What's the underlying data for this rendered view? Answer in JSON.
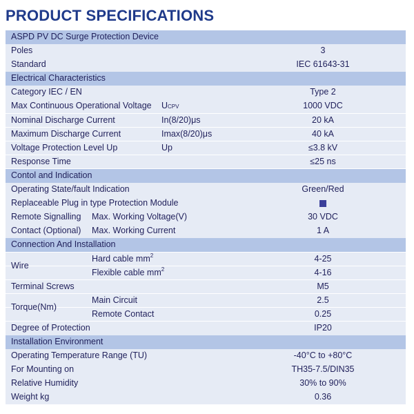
{
  "title": "PRODUCT SPECIFICATIONS",
  "product_name": "ASPD PV DC Surge Protection Device",
  "basic": [
    {
      "label": "Poles",
      "value": "3"
    },
    {
      "label": "Standard",
      "value": "IEC 61643-31"
    }
  ],
  "electrical": {
    "heading": "Electrical Characteristics",
    "rows": [
      {
        "label": "Category IEC / EN",
        "sym": "",
        "value": "Type 2"
      },
      {
        "label": "Max Continuous Operational Voltage",
        "sym": "U",
        "sym_sub": "CPV",
        "value": "1000 VDC"
      },
      {
        "label": "Nominal Discharge Current",
        "sym": "In(8/20)μs",
        "value": "20 kA"
      },
      {
        "label": "Maximum Discharge Current",
        "sym": "Imax(8/20)μs",
        "value": "40 kA"
      },
      {
        "label": "Voltage Protection Level Up",
        "sym": "Up",
        "value": "≤3.8 kV"
      },
      {
        "label": "Response Time",
        "sym": "",
        "value": "≤25 ns"
      }
    ]
  },
  "control": {
    "heading": "Contol and Indication",
    "rows": [
      {
        "label": "Operating State/fault  Indication",
        "value": "Green/Red"
      },
      {
        "label": "Replaceable Plug in type  Protection Module",
        "value": "■"
      }
    ],
    "remote_label_1": "Remote Signalling",
    "remote_label_2": "Contact (Optional)",
    "remote_rows": [
      {
        "sub": "Max. Working Voltage(V)",
        "value": "30 VDC"
      },
      {
        "sub": "Max. Working Current",
        "value": "1 A"
      }
    ]
  },
  "connection": {
    "heading": "Connection And Installation",
    "wire_label": "Wire",
    "wire_rows": [
      {
        "sub": "Hard cable  mm",
        "sup": "2",
        "value": "4-25"
      },
      {
        "sub": "Flexible cable  mm",
        "sup": "2",
        "value": "4-16"
      }
    ],
    "terminal": {
      "label": "Terminal Screws",
      "value": "M5"
    },
    "torque_label": "Torque(Nm)",
    "torque_rows": [
      {
        "sub": "Main Circuit",
        "value": "2.5"
      },
      {
        "sub": "Remote Contact",
        "value": "0.25"
      }
    ],
    "protection": {
      "label": "Degree of Protection",
      "value": "IP20"
    }
  },
  "environment": {
    "heading": "Installation Environment",
    "rows": [
      {
        "label": "Operating Temperature Range (TU)",
        "value": "-40°C to +80°C"
      },
      {
        "label": "For Mounting on",
        "value": "TH35-7.5/DIN35"
      },
      {
        "label": "Relative Humidity",
        "value": "30% to 90%"
      },
      {
        "label": "Weight  kg",
        "value": "0.36"
      }
    ]
  },
  "colors": {
    "title": "#1f3a8a",
    "section_row": "#b3c5e6",
    "data_row": "#e6ebf5",
    "text": "#1f1f5a",
    "module_square": "#3a3f9a"
  }
}
